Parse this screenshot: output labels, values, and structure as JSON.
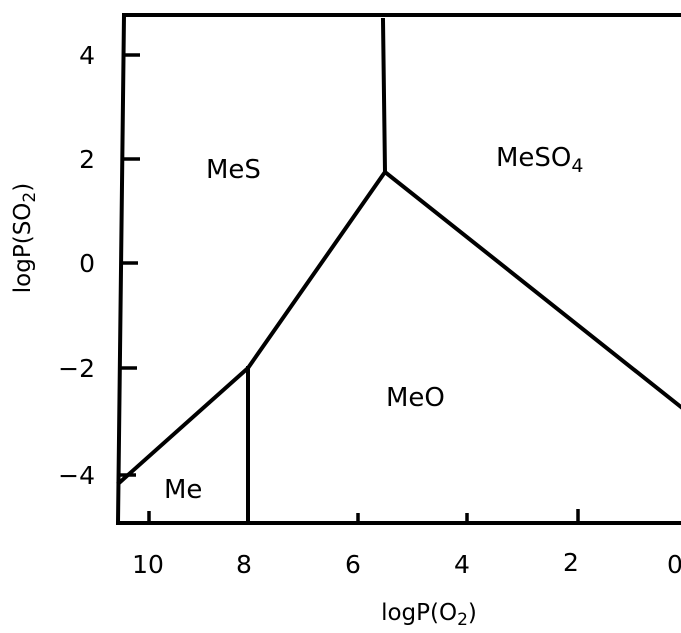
{
  "diagram": {
    "type": "phase-stability-diagram",
    "x_axis": {
      "label_main": "logP(O",
      "label_sub": "2",
      "label_end": ")",
      "ticks": [
        "10",
        "8",
        "6",
        "4",
        "2",
        "0"
      ]
    },
    "y_axis": {
      "label_main": "logP(SO",
      "label_sub": "2",
      "label_end": ")",
      "ticks": [
        "4",
        "2",
        "0",
        "−2",
        "−4"
      ]
    },
    "regions": {
      "mes": "MeS",
      "meso4_main": "MeSO",
      "meso4_sub": "4",
      "meo": "MeO",
      "me": "Me"
    }
  }
}
